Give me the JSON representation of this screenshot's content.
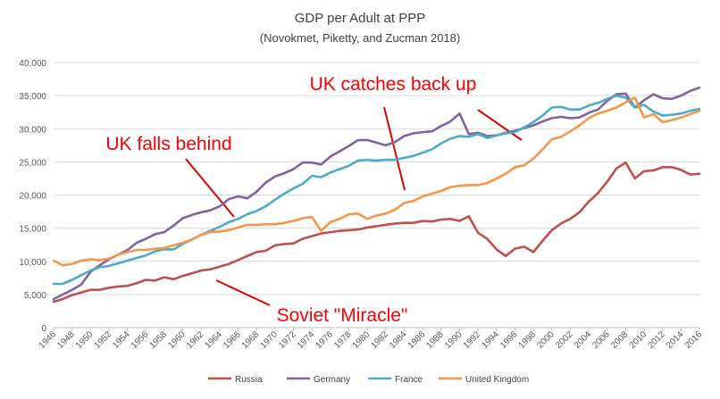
{
  "chart_data": {
    "type": "line",
    "title": "GDP per Adult at PPP",
    "subtitle": "(Novokmet, Piketty, and Zucman 2018)",
    "xlabel": "",
    "ylabel": "",
    "ylim": [
      0,
      40000
    ],
    "xlim": [
      1946,
      2016
    ],
    "y_ticks": [
      "0",
      "5,000",
      "10,000",
      "15,000",
      "20,000",
      "25,000",
      "30,000",
      "35,000",
      "40,000"
    ],
    "y_tick_values": [
      0,
      5000,
      10000,
      15000,
      20000,
      25000,
      30000,
      35000,
      40000
    ],
    "x_ticks": [
      1946,
      1948,
      1950,
      1952,
      1954,
      1956,
      1958,
      1960,
      1962,
      1964,
      1966,
      1968,
      1970,
      1972,
      1974,
      1976,
      1978,
      1980,
      1982,
      1984,
      1986,
      1988,
      1990,
      1992,
      1994,
      1996,
      1998,
      2000,
      2002,
      2004,
      2006,
      2008,
      2010,
      2012,
      2014,
      2016
    ],
    "grid": "horizontal",
    "legend_position": "bottom",
    "x": [
      1946,
      1947,
      1948,
      1949,
      1950,
      1951,
      1952,
      1953,
      1954,
      1955,
      1956,
      1957,
      1958,
      1959,
      1960,
      1961,
      1962,
      1963,
      1964,
      1965,
      1966,
      1967,
      1968,
      1969,
      1970,
      1971,
      1972,
      1973,
      1974,
      1975,
      1976,
      1977,
      1978,
      1979,
      1980,
      1981,
      1982,
      1983,
      1984,
      1985,
      1986,
      1987,
      1988,
      1989,
      1990,
      1991,
      1992,
      1993,
      1994,
      1995,
      1996,
      1997,
      1998,
      1999,
      2000,
      2001,
      2002,
      2003,
      2004,
      2005,
      2006,
      2007,
      2008,
      2009,
      2010,
      2011,
      2012,
      2013,
      2014,
      2015,
      2016
    ],
    "series": [
      {
        "name": "Russia",
        "color": "#c0504d",
        "values": [
          3900,
          4300,
          4900,
          5300,
          5700,
          5700,
          6000,
          6200,
          6300,
          6700,
          7200,
          7100,
          7600,
          7300,
          7800,
          8200,
          8600,
          8800,
          9200,
          9600,
          10200,
          10800,
          11400,
          11600,
          12400,
          12600,
          12700,
          13400,
          13800,
          14200,
          14400,
          14600,
          14700,
          14800,
          15100,
          15300,
          15500,
          15700,
          15800,
          15800,
          16100,
          16000,
          16300,
          16400,
          16100,
          16800,
          14300,
          13400,
          11800,
          10800,
          11900,
          12200,
          11400,
          13100,
          14700,
          15700,
          16400,
          17400,
          19000,
          20300,
          22000,
          24000,
          24900,
          22500,
          23600,
          23700,
          24200,
          24200,
          23800,
          23100,
          23200
        ]
      },
      {
        "name": "Germany",
        "color": "#8064a2",
        "values": [
          4300,
          5000,
          5700,
          6500,
          8400,
          9400,
          10300,
          11000,
          11700,
          12800,
          13400,
          14100,
          14400,
          15400,
          16500,
          17000,
          17400,
          17700,
          18300,
          19400,
          19800,
          19500,
          20500,
          21900,
          22800,
          23300,
          23900,
          24900,
          24900,
          24600,
          25800,
          26600,
          27400,
          28300,
          28300,
          27900,
          27500,
          28000,
          28900,
          29300,
          29500,
          29600,
          30400,
          31100,
          32300,
          29200,
          29400,
          28900,
          29000,
          29400,
          29700,
          30100,
          30500,
          31100,
          31600,
          31800,
          31600,
          31700,
          32400,
          32900,
          34200,
          35200,
          35300,
          33200,
          34300,
          35200,
          34600,
          34500,
          35000,
          35700,
          36200
        ]
      },
      {
        "name": "France",
        "color": "#4bacc6",
        "values": [
          6600,
          6600,
          7200,
          7900,
          8600,
          9100,
          9300,
          9700,
          10100,
          10500,
          10900,
          11500,
          11800,
          11800,
          12600,
          13300,
          14000,
          14600,
          15200,
          15900,
          16400,
          17100,
          17600,
          18300,
          19300,
          20200,
          21000,
          21700,
          22900,
          22700,
          23400,
          23900,
          24400,
          25200,
          25300,
          25200,
          25300,
          25300,
          25600,
          25900,
          26400,
          26900,
          27800,
          28500,
          28900,
          28800,
          29200,
          28600,
          29000,
          29300,
          29500,
          30200,
          31000,
          32000,
          33200,
          33300,
          32900,
          32900,
          33500,
          33900,
          34500,
          35000,
          34700,
          33200,
          33600,
          32600,
          32000,
          32100,
          32300,
          32700,
          33000
        ]
      },
      {
        "name": "United Kingdom",
        "color": "#f79646",
        "values": [
          10100,
          9400,
          9600,
          10100,
          10300,
          10200,
          10400,
          11000,
          11400,
          11700,
          11700,
          11900,
          12000,
          12400,
          12800,
          13300,
          14000,
          14400,
          14500,
          14700,
          15100,
          15500,
          15500,
          15600,
          15600,
          15800,
          16100,
          16500,
          16700,
          14600,
          15900,
          16400,
          17100,
          17200,
          16400,
          16900,
          17200,
          17800,
          18800,
          19100,
          19800,
          20200,
          20600,
          21200,
          21400,
          21500,
          21500,
          21800,
          22500,
          23200,
          24200,
          24500,
          25500,
          26900,
          28400,
          28800,
          29600,
          30500,
          31600,
          32300,
          32700,
          33200,
          34000,
          34700,
          31700,
          32200,
          31000,
          31300,
          31700,
          32200,
          32700
        ]
      }
    ],
    "annotations": [
      {
        "text": "UK catches back up",
        "color": "#ff0000"
      },
      {
        "text": "UK falls behind",
        "color": "#ff0000"
      },
      {
        "text": "Soviet \"Miracle\"",
        "color": "#ff0000"
      }
    ]
  }
}
